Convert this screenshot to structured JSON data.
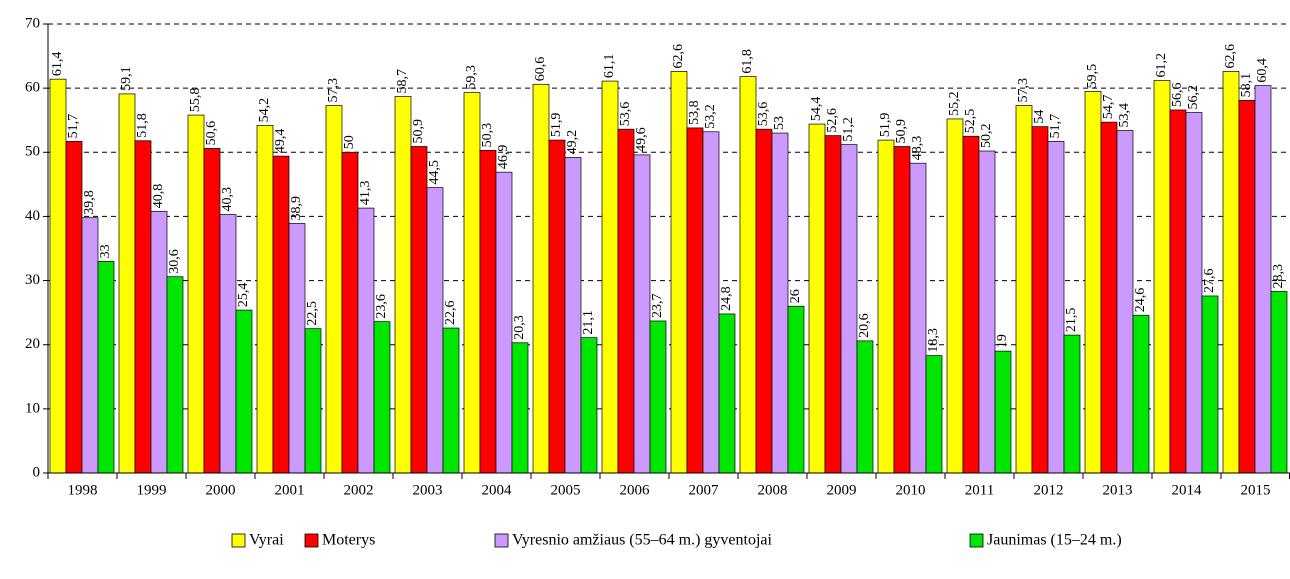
{
  "chart_data": {
    "type": "bar",
    "categories": [
      "1998",
      "1999",
      "2000",
      "2001",
      "2002",
      "2003",
      "2004",
      "2005",
      "2006",
      "2007",
      "2008",
      "2009",
      "2010",
      "2011",
      "2012",
      "2013",
      "2014",
      "2015"
    ],
    "series": [
      {
        "name": "Vyrai",
        "color": "#ffff00",
        "values": [
          61.4,
          59.1,
          55.8,
          54.2,
          57.3,
          58.7,
          59.3,
          60.6,
          61.1,
          62.6,
          61.8,
          54.4,
          51.9,
          55.2,
          57.3,
          59.5,
          61.2,
          62.6
        ],
        "value_labels": [
          "61,4",
          "59,1",
          "55,8",
          "54,2",
          "57,3",
          "58,7",
          "59,3",
          "60,6",
          "61,1",
          "62,6",
          "61,8",
          "54,4",
          "51,9",
          "55,2",
          "57,3",
          "59,5",
          "61,2",
          "62,6"
        ]
      },
      {
        "name": "Moterys",
        "color": "#ff0000",
        "values": [
          51.7,
          51.8,
          50.6,
          49.4,
          50,
          50.9,
          50.3,
          51.9,
          53.6,
          53.8,
          53.6,
          52.6,
          50.9,
          52.5,
          54,
          54.7,
          56.6,
          58.1
        ],
        "value_labels": [
          "51,7",
          "51,8",
          "50,6",
          "49,4",
          "50",
          "50,9",
          "50,3",
          "51,9",
          "53,6",
          "53,8",
          "53,6",
          "52,6",
          "50,9",
          "52,5",
          "54",
          "54,7",
          "56,6",
          "58,1"
        ]
      },
      {
        "name": "Vyresnio amžiaus (55–64 m.) gyventojai",
        "color": "#cc99ff",
        "values": [
          39.8,
          40.8,
          40.3,
          38.9,
          41.3,
          44.5,
          46.9,
          49.2,
          49.6,
          53.2,
          53,
          51.2,
          48.3,
          50.2,
          51.7,
          53.4,
          56.2,
          60.4
        ],
        "value_labels": [
          "39,8",
          "40,8",
          "40,3",
          "38,9",
          "41,3",
          "44,5",
          "46,9",
          "49,2",
          "49,6",
          "53,2",
          "53",
          "51,2",
          "48,3",
          "50,2",
          "51,7",
          "53,4",
          "56,2",
          "60,4"
        ]
      },
      {
        "name": "Jaunimas (15–24 m.)",
        "color": "#00e600",
        "values": [
          33,
          30.6,
          25.4,
          22.5,
          23.6,
          22.6,
          20.3,
          21.1,
          23.7,
          24.8,
          26,
          20.6,
          18.3,
          19,
          21.5,
          24.6,
          27.6,
          28.3
        ],
        "value_labels": [
          "33",
          "30,6",
          "25,4",
          "22,5",
          "23,6",
          "22,6",
          "20,3",
          "21,1",
          "23,7",
          "24,8",
          "26",
          "20,6",
          "18,3",
          "19",
          "21,5",
          "24,6",
          "27,6",
          "28,3"
        ]
      }
    ],
    "ylim": [
      0,
      70
    ],
    "yticks": [
      0,
      10,
      20,
      30,
      40,
      50,
      60,
      70
    ],
    "grid": true
  }
}
